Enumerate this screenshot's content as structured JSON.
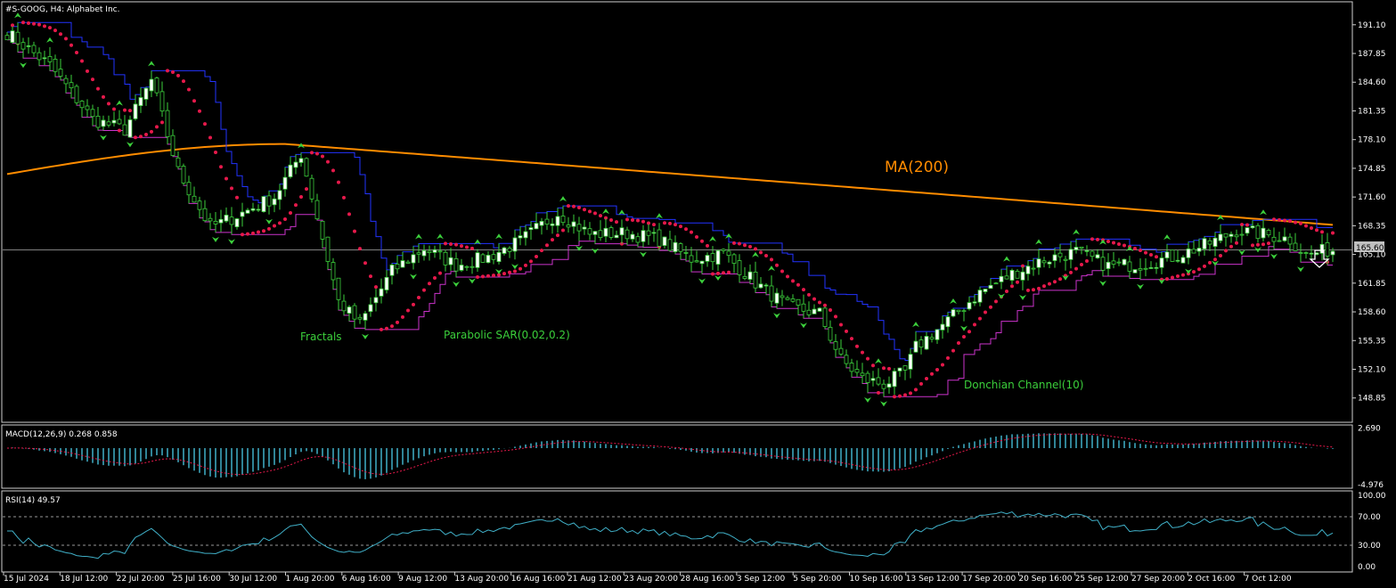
{
  "chart_data": [
    {
      "type": "candlestick",
      "title": "#S-GOOG, H4:  Alphabet Inc.",
      "symbol": "#S-GOOG",
      "timeframe": "H4",
      "instrument": "Alphabet Inc.",
      "ylim": [
        146.3,
        193.5
      ],
      "y_ticks": [
        "191.10",
        "187.85",
        "184.60",
        "181.35",
        "178.10",
        "174.85",
        "171.60",
        "168.35",
        "165.10",
        "161.85",
        "158.60",
        "155.35",
        "152.10",
        "148.85"
      ],
      "x_ticks": [
        "15 Jul 2024",
        "18 Jul 12:00",
        "22 Jul 20:00",
        "25 Jul 16:00",
        "30 Jul 12:00",
        "1 Aug 20:00",
        "6 Aug 16:00",
        "9 Aug 12:00",
        "13 Aug 20:00",
        "16 Aug 16:00",
        "21 Aug 12:00",
        "23 Aug 20:00",
        "28 Aug 16:00",
        "3 Sep 12:00",
        "5 Sep 20:00",
        "10 Sep 16:00",
        "13 Sep 12:00",
        "17 Sep 20:00",
        "20 Sep 16:00",
        "25 Sep 12:00",
        "27 Sep 20:00",
        "2 Oct 16:00",
        "7 Oct 12:00"
      ],
      "current_price": "165.60",
      "close_anchors": [
        [
          0,
          190.2
        ],
        [
          8,
          186.5
        ],
        [
          16,
          180.4
        ],
        [
          22,
          179.2
        ],
        [
          27,
          184.8
        ],
        [
          32,
          174.5
        ],
        [
          38,
          168.2
        ],
        [
          42,
          169.2
        ],
        [
          50,
          171.6
        ],
        [
          55,
          176.5
        ],
        [
          62,
          159.8
        ],
        [
          66,
          157.2
        ],
        [
          72,
          163.2
        ],
        [
          78,
          165.8
        ],
        [
          84,
          163.9
        ],
        [
          90,
          164.8
        ],
        [
          96,
          166.6
        ],
        [
          103,
          169.8
        ],
        [
          109,
          167.4
        ],
        [
          116,
          167.5
        ],
        [
          122,
          166.8
        ],
        [
          128,
          164.6
        ],
        [
          134,
          165.2
        ],
        [
          140,
          161.9
        ],
        [
          146,
          159.2
        ],
        [
          152,
          158.4
        ],
        [
          156,
          153.2
        ],
        [
          160,
          151.0
        ],
        [
          164,
          150.4
        ],
        [
          168,
          151.8
        ],
        [
          170,
          154.6
        ],
        [
          176,
          157.6
        ],
        [
          182,
          160.8
        ],
        [
          188,
          162.9
        ],
        [
          194,
          164.5
        ],
        [
          200,
          165.4
        ],
        [
          206,
          163.8
        ],
        [
          212,
          164.0
        ],
        [
          218,
          164.8
        ],
        [
          224,
          166.1
        ],
        [
          230,
          167.8
        ],
        [
          236,
          167.3
        ],
        [
          240,
          166.8
        ],
        [
          243,
          165.0
        ],
        [
          247,
          165.6
        ]
      ],
      "annotations": [
        {
          "id": "ma",
          "text": "MA(200)",
          "color": "#ff8c00"
        },
        {
          "id": "fractals",
          "text": "Fractals",
          "color": "#3bcf3b"
        },
        {
          "id": "sar",
          "text": "Parabolic SAR(0.02,0.2)",
          "color": "#3bcf3b"
        },
        {
          "id": "donchian",
          "text": "Donchian Channel(10)",
          "color": "#3bcf3b"
        }
      ],
      "signal": "down-arrow",
      "colors": {
        "bull": "#ffffff",
        "bear": "#000000",
        "wick": "#3bcf3b",
        "ma": "#ff8c00",
        "sar": "#e6194b",
        "donchian_upper": "#2233ff",
        "donchian_lower": "#cc33cc",
        "fractal": "#3bcf3b",
        "grid_line": "#aaaaaa"
      }
    },
    {
      "type": "histogram",
      "title": "MACD(12,26,9) 0.268 0.858",
      "y_ticks": [
        "2.690",
        "-4.976"
      ],
      "ylim": [
        -5.2,
        2.9
      ],
      "colors": {
        "hist": "#40b0c8",
        "signal": "#e6194b"
      }
    },
    {
      "type": "line",
      "title": "RSI(14) 49.57",
      "y_ticks": [
        "100.00",
        "70.00",
        "30.00",
        "0.00"
      ],
      "ylim": [
        0,
        100
      ],
      "levels": [
        70,
        30
      ],
      "colors": {
        "line": "#40b0c8",
        "level": "#cccccc"
      }
    }
  ]
}
